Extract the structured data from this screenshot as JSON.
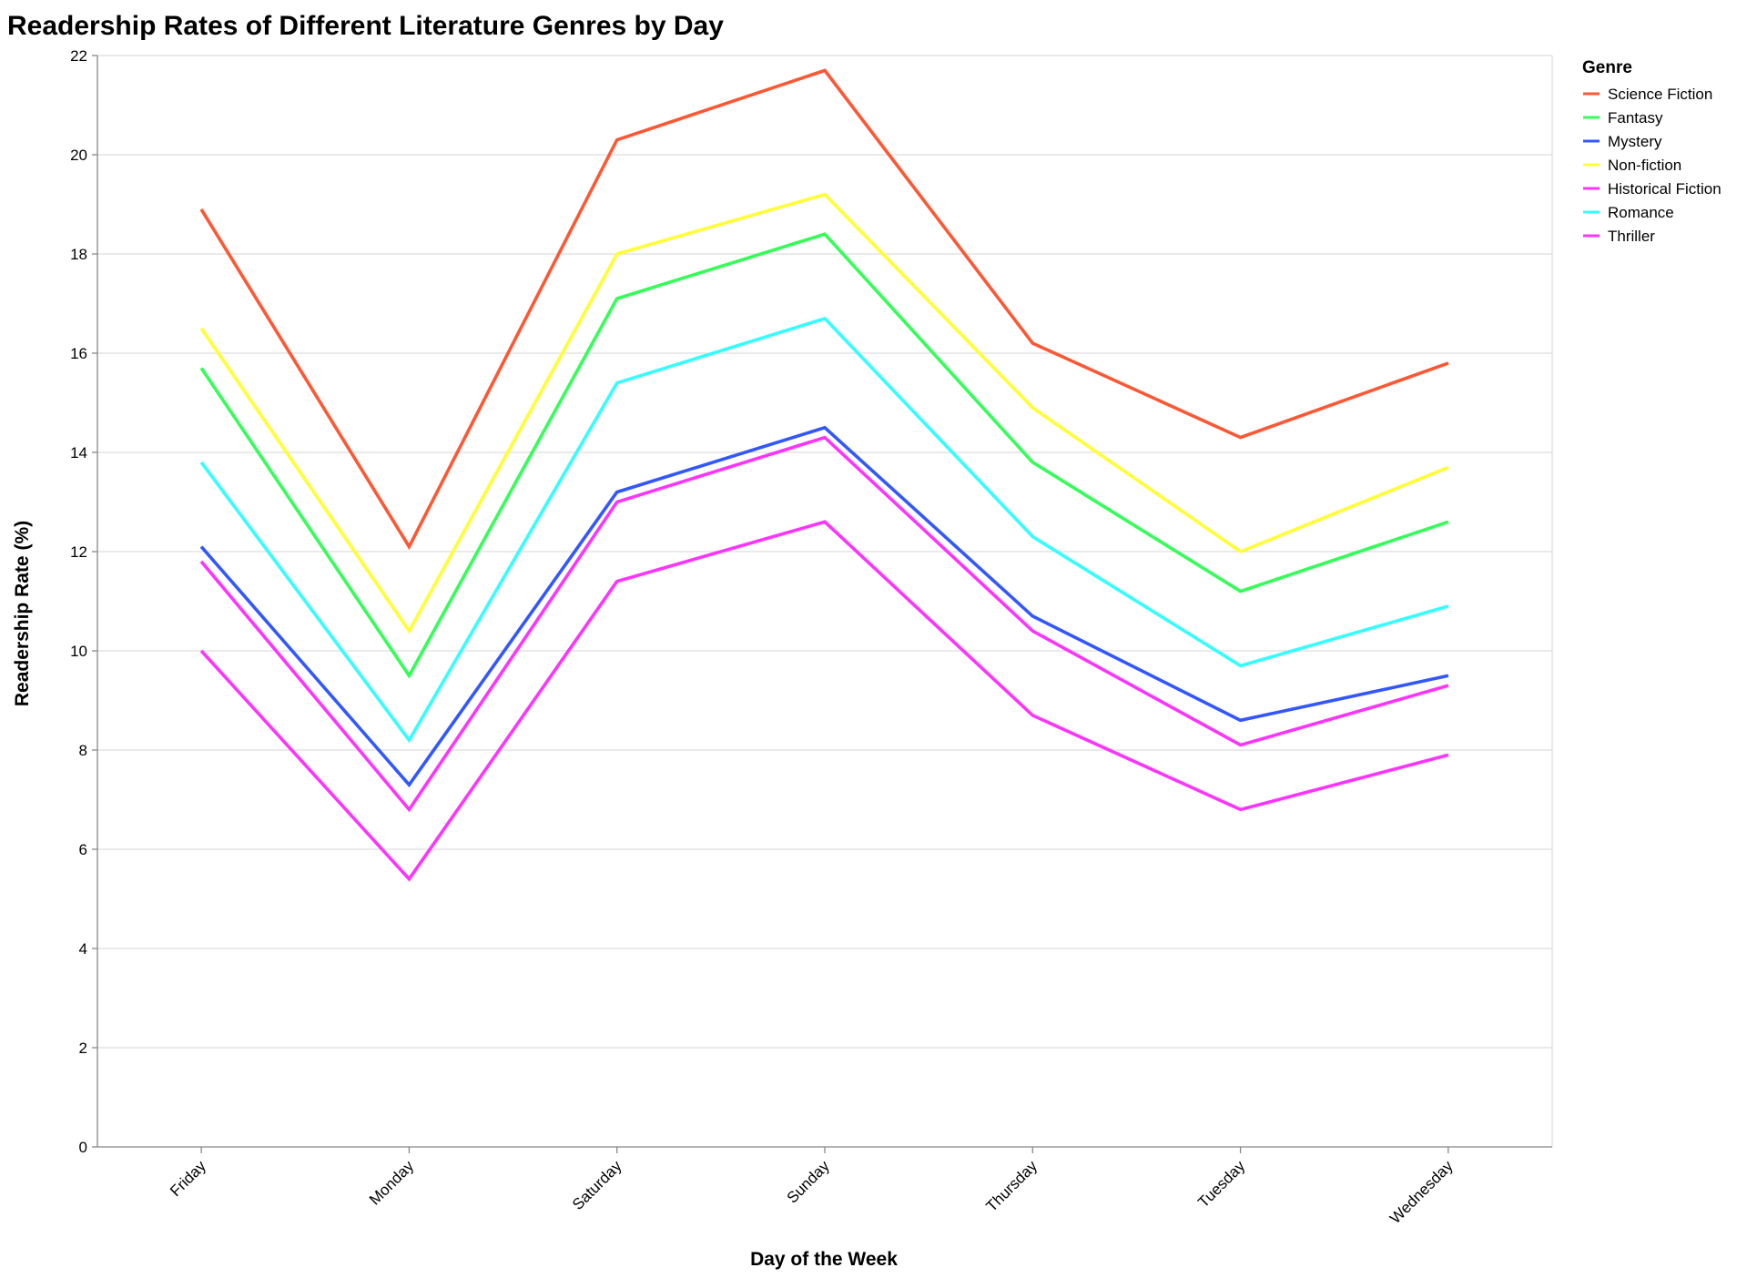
{
  "chart_data": {
    "type": "line",
    "title": "Readership Rates of Different Literature Genres by Day",
    "xlabel": "Day of the Week",
    "ylabel": "Readership Rate (%)",
    "categories": [
      "Friday",
      "Monday",
      "Saturday",
      "Sunday",
      "Thursday",
      "Tuesday",
      "Wednesday"
    ],
    "ylim": [
      0,
      22
    ],
    "yticks": [
      0,
      2,
      4,
      6,
      8,
      10,
      12,
      14,
      16,
      18,
      20,
      22
    ],
    "grid": true,
    "legend": {
      "title": "Genre",
      "placement": "top-right"
    },
    "series": [
      {
        "name": "Science Fiction",
        "color": "#ff5733",
        "values": [
          18.9,
          12.1,
          20.3,
          21.7,
          16.2,
          14.3,
          15.8
        ]
      },
      {
        "name": "Fantasy",
        "color": "#33ff57",
        "values": [
          15.7,
          9.5,
          17.1,
          18.4,
          13.8,
          11.2,
          12.6
        ]
      },
      {
        "name": "Mystery",
        "color": "#3357ff",
        "values": [
          12.1,
          7.3,
          13.2,
          14.5,
          10.7,
          8.6,
          9.5
        ]
      },
      {
        "name": "Non-fiction",
        "color": "#ffff33",
        "values": [
          16.5,
          10.4,
          18.0,
          19.2,
          14.9,
          12.0,
          13.7
        ]
      },
      {
        "name": "Historical Fiction",
        "color": "#ff33ff",
        "values": [
          11.8,
          6.8,
          13.0,
          14.3,
          10.4,
          8.1,
          9.3
        ]
      },
      {
        "name": "Romance",
        "color": "#33ffff",
        "values": [
          13.8,
          8.2,
          15.4,
          16.7,
          12.3,
          9.7,
          10.9
        ]
      },
      {
        "name": "Thriller",
        "color": "#ff33ff",
        "values": [
          10.0,
          5.4,
          11.4,
          12.6,
          8.7,
          6.8,
          7.9
        ]
      }
    ]
  }
}
